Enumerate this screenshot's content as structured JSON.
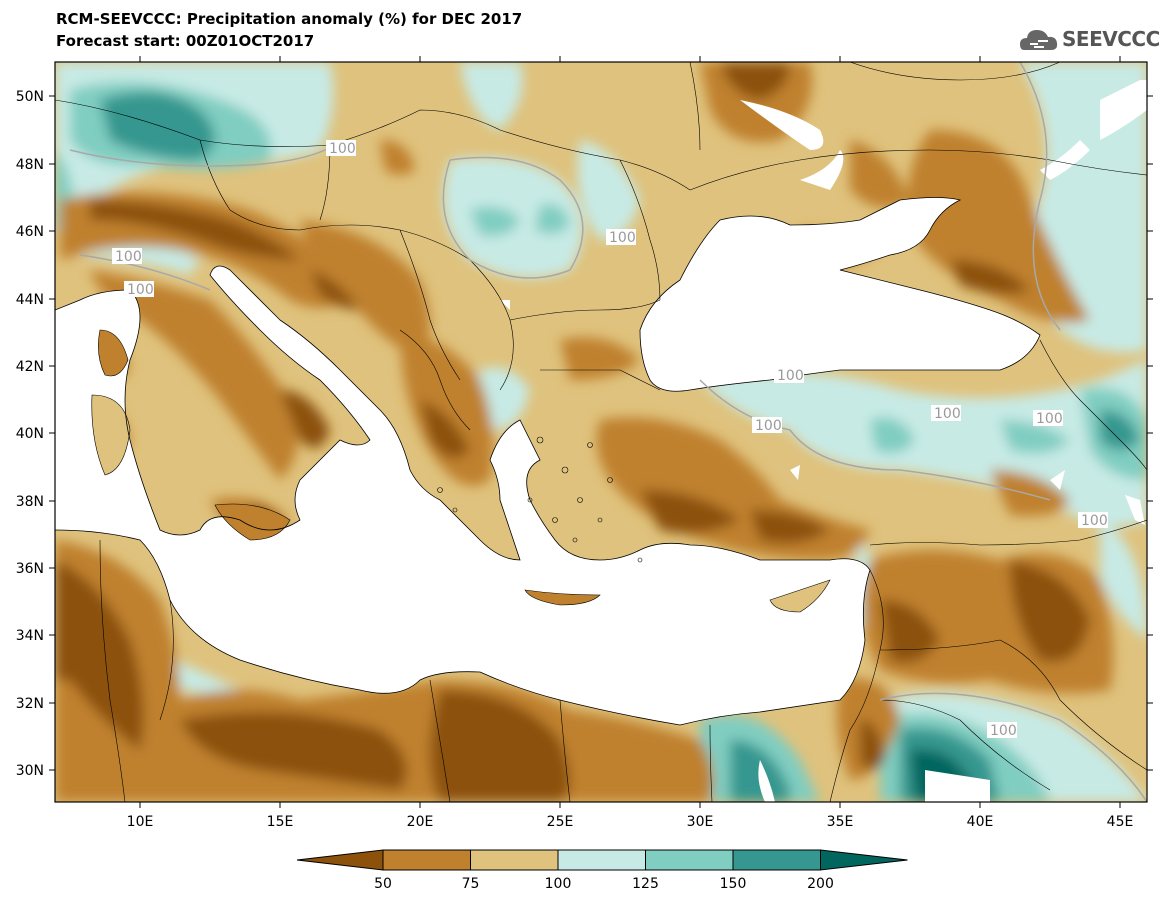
{
  "title_line1": "RCM-SEEVCCC: Precipitation anomaly (%) for DEC 2017",
  "title_line2": "Forecast start: 00Z01OCT2017",
  "logo_text": "SEEVCCC",
  "logo_icon": "cloud-icon",
  "lat_labels": [
    "50N",
    "48N",
    "46N",
    "44N",
    "42N",
    "40N",
    "38N",
    "36N",
    "34N",
    "32N",
    "30N"
  ],
  "lon_labels": [
    "10E",
    "15E",
    "20E",
    "25E",
    "30E",
    "35E",
    "40E",
    "45E"
  ],
  "contour_label": "100",
  "colorbar": {
    "colors": [
      "#8c510a",
      "#bf812d",
      "#dfc27d",
      "#c7eae5",
      "#80cdc1",
      "#35978f",
      "#01665e"
    ],
    "ticks": [
      "50",
      "75",
      "100",
      "125",
      "150",
      "200"
    ]
  },
  "colors": {
    "sea": "#ffffff",
    "contour": "#a8a8a8",
    "border": "#000000"
  }
}
